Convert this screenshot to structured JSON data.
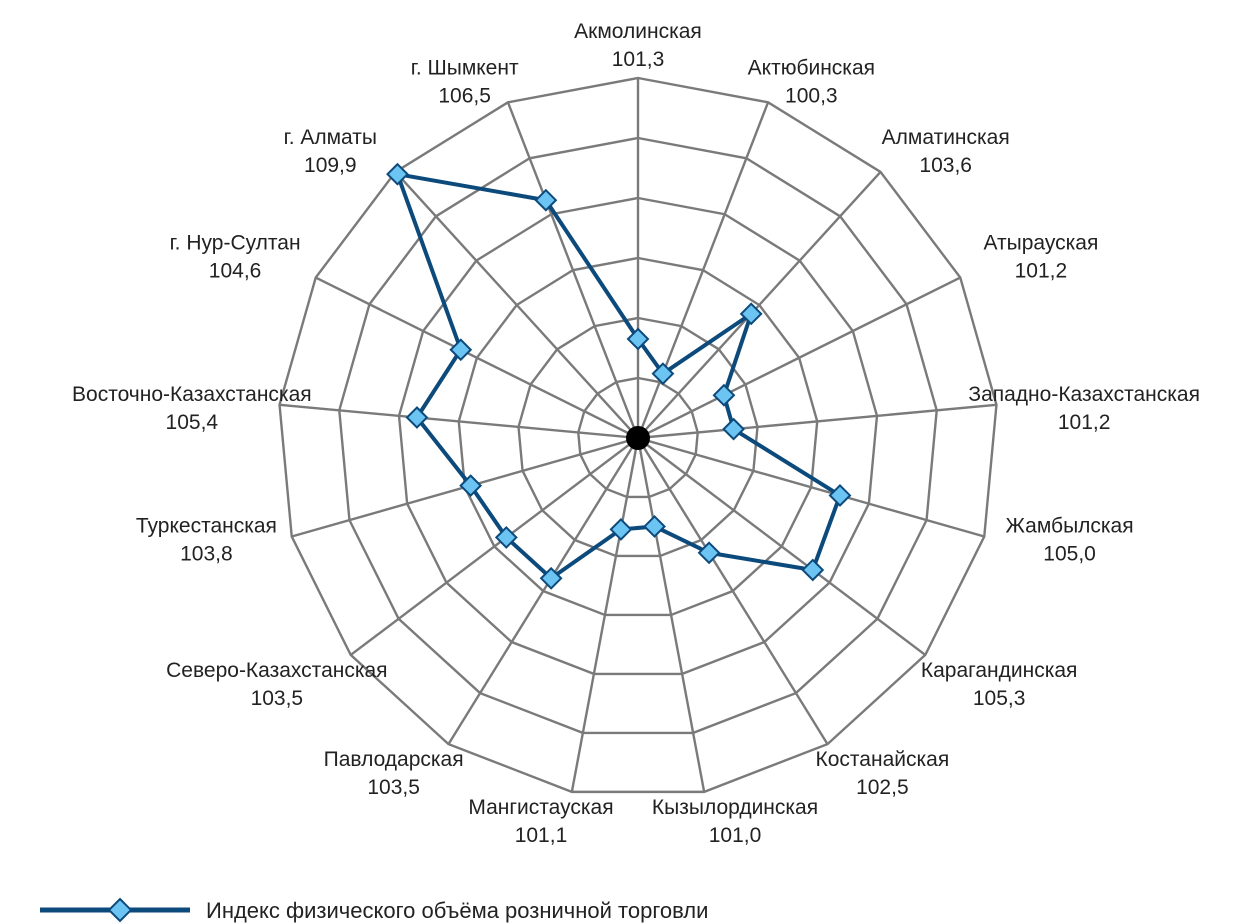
{
  "chart_data": {
    "type": "radar",
    "title": "",
    "categories": [
      "Акмолинская",
      "Актюбинская",
      "Алматинская",
      "Атырауская",
      "Западно-Казахстанская",
      "Жамбылская",
      "Карагандинская",
      "Костанайская",
      "Кызылординская",
      "Мангистауская",
      "Павлодарская",
      "Северо-Казахстанская",
      "Туркестанская",
      "Восточно-Казахстанская",
      "г. Нур-Султан",
      "г. Алматы",
      "г. Шымкент"
    ],
    "value_labels": [
      "101,3",
      "100,3",
      "103,6",
      "101,2",
      "101,2",
      "105,0",
      "105,3",
      "102,5",
      "101,0",
      "101,1",
      "103,5",
      "103,5",
      "103,8",
      "105,4",
      "104,6",
      "109,9",
      "106,5"
    ],
    "series": [
      {
        "name": "Индекс физического объёма розничной торговли",
        "values": [
          101.3,
          100.3,
          103.6,
          101.2,
          101.2,
          105.0,
          105.3,
          102.5,
          101.0,
          101.1,
          103.5,
          103.5,
          103.8,
          105.4,
          104.6,
          109.9,
          106.5
        ]
      }
    ],
    "rlim": [
      98,
      110
    ],
    "grid_step": 2,
    "grid": true,
    "legend_position": "bottom-left",
    "colors": {
      "series_line": "#0d4a7c",
      "marker_fill": "#6cc4f2",
      "marker_stroke": "#0d4a7c",
      "grid": "#7a7a7a",
      "center": "#000000"
    }
  }
}
